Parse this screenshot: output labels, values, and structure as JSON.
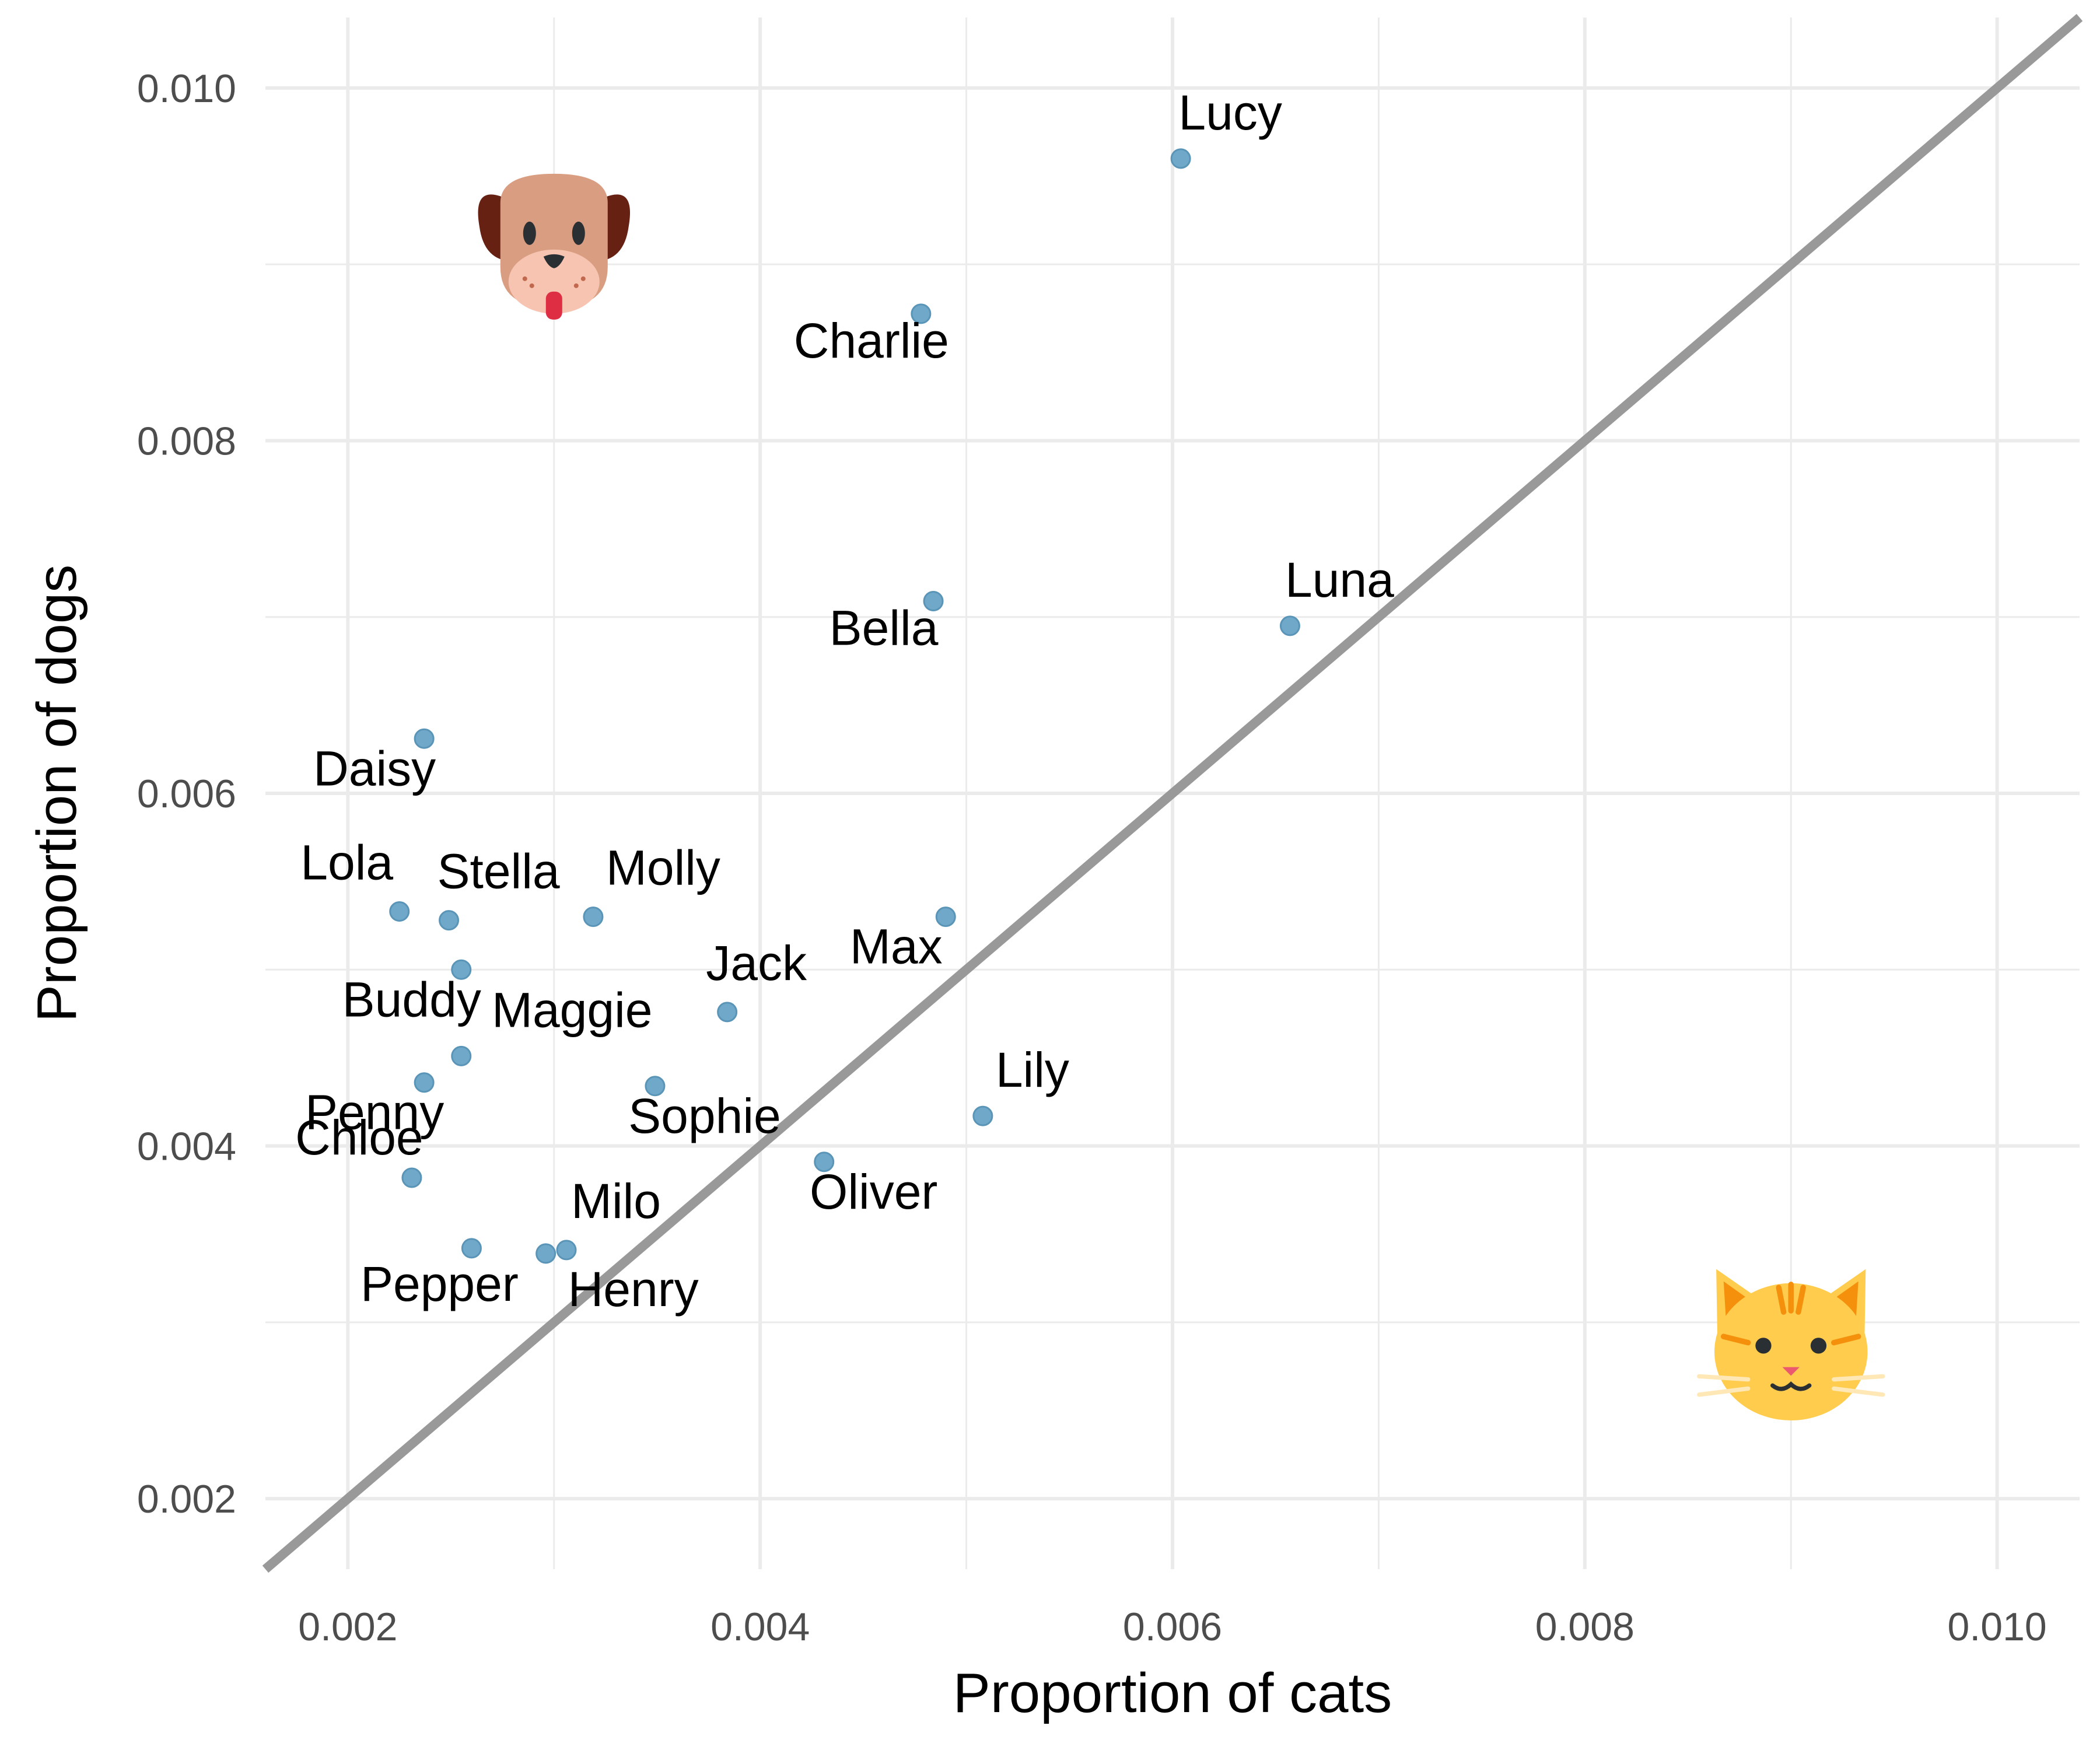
{
  "chart_data": {
    "type": "scatter",
    "xlabel": "Proportion of cats",
    "ylabel": "Proportion of dogs",
    "xlim": [
      0.0016,
      0.0104
    ],
    "ylim": [
      0.0016,
      0.0104
    ],
    "x_ticks": [
      0.002,
      0.004,
      0.006,
      0.008,
      0.01
    ],
    "y_ticks": [
      0.002,
      0.004,
      0.006,
      0.008,
      0.01
    ],
    "x_tick_labels": [
      "0.002",
      "0.004",
      "0.006",
      "0.008",
      "0.010"
    ],
    "y_tick_labels": [
      "0.002",
      "0.004",
      "0.006",
      "0.008",
      "0.010"
    ],
    "grid": true,
    "reference_line": "y = x",
    "point_color": "#6fa8c8",
    "line_color": "#999999",
    "icons": [
      "dog-face-icon",
      "cat-face-icon"
    ],
    "points": [
      {
        "name": "Lucy",
        "x": 0.00604,
        "y": 0.0096
      },
      {
        "name": "Charlie",
        "x": 0.00478,
        "y": 0.00872
      },
      {
        "name": "Luna",
        "x": 0.00657,
        "y": 0.00695
      },
      {
        "name": "Bella",
        "x": 0.00484,
        "y": 0.00709
      },
      {
        "name": "Daisy",
        "x": 0.00237,
        "y": 0.00631
      },
      {
        "name": "Lola",
        "x": 0.00225,
        "y": 0.00533
      },
      {
        "name": "Stella",
        "x": 0.00249,
        "y": 0.00528
      },
      {
        "name": "Molly",
        "x": 0.00319,
        "y": 0.0053
      },
      {
        "name": "Max",
        "x": 0.0049,
        "y": 0.0053
      },
      {
        "name": "Buddy",
        "x": 0.00255,
        "y": 0.005
      },
      {
        "name": "Jack",
        "x": 0.00384,
        "y": 0.00476
      },
      {
        "name": "Maggie",
        "x": 0.00255,
        "y": 0.00451
      },
      {
        "name": "Penny",
        "x": 0.00237,
        "y": 0.00436
      },
      {
        "name": "Sophie",
        "x": 0.00349,
        "y": 0.00434
      },
      {
        "name": "Lily",
        "x": 0.00508,
        "y": 0.00417
      },
      {
        "name": "Oliver",
        "x": 0.00431,
        "y": 0.00391
      },
      {
        "name": "Chloe",
        "x": 0.00231,
        "y": 0.00382
      },
      {
        "name": "Pepper",
        "x": 0.0026,
        "y": 0.00342
      },
      {
        "name": "Henry",
        "x": 0.00296,
        "y": 0.00339
      },
      {
        "name": "Milo",
        "x": 0.00306,
        "y": 0.00341
      }
    ]
  }
}
